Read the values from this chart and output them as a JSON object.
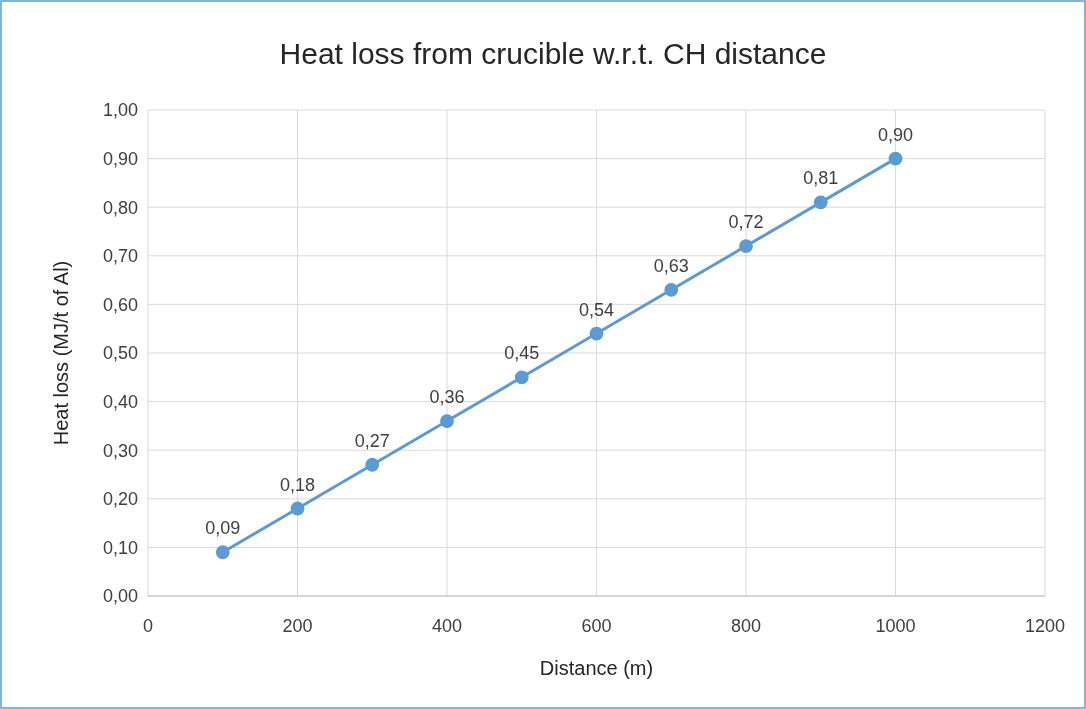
{
  "chart_data": {
    "type": "line",
    "title": "Heat loss from crucible w.r.t. CH distance",
    "xlabel": "Distance (m)",
    "ylabel": "Heat loss (MJ/t of Al)",
    "x": [
      100,
      200,
      300,
      400,
      500,
      600,
      700,
      800,
      900,
      1000
    ],
    "series": [
      {
        "color": "#5b9bd5",
        "values": [
          0.09,
          0.18,
          0.27,
          0.36,
          0.45,
          0.54,
          0.63,
          0.72,
          0.81,
          0.9
        ],
        "value_labels": [
          "0,09",
          "0,18",
          "0,27",
          "0,36",
          "0,45",
          "0,54",
          "0,63",
          "0,72",
          "0,81",
          "0,90"
        ]
      }
    ],
    "xlim": [
      0,
      1200
    ],
    "xticks": [
      0,
      200,
      400,
      600,
      800,
      1000,
      1200
    ],
    "ylim": [
      0,
      1
    ],
    "yticks": [
      {
        "value": 0,
        "label": "0,00"
      },
      {
        "value": 0.1,
        "label": "0,10"
      },
      {
        "value": 0.2,
        "label": "0,20"
      },
      {
        "value": 0.3,
        "label": "0,30"
      },
      {
        "value": 0.4,
        "label": "0,40"
      },
      {
        "value": 0.5,
        "label": "0,50"
      },
      {
        "value": 0.6,
        "label": "0,60"
      },
      {
        "value": 0.7,
        "label": "0,70"
      },
      {
        "value": 0.8,
        "label": "0,80"
      },
      {
        "value": 0.9,
        "label": "0,90"
      },
      {
        "value": 1,
        "label": "1,00"
      }
    ],
    "grid": true,
    "marker": "circle",
    "line_style": "solid"
  }
}
